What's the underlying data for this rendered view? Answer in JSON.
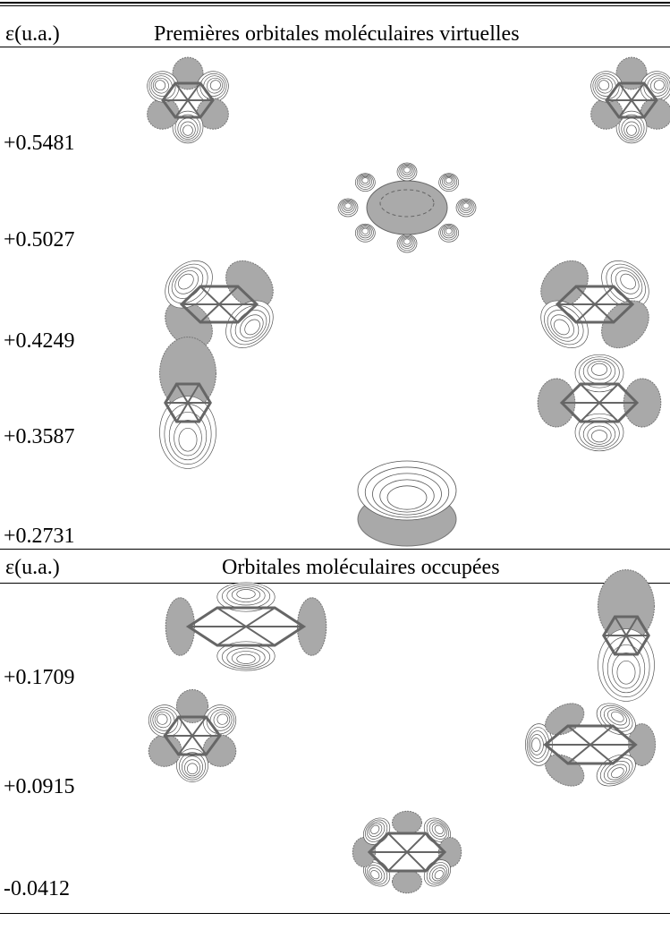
{
  "table": {
    "sections": [
      {
        "header": [
          "ε(u.a.)",
          "Premières orbitales moléculaires virtuelles"
        ],
        "rows": [
          "+0.5481",
          "+0.5027",
          "+0.4249",
          "+0.3587",
          "+0.2731"
        ]
      },
      {
        "header": [
          "ε(u.a.)",
          "Orbitales moléculaires occupées"
        ],
        "rows": [
          "+0.1709",
          "+0.0915",
          "-0.0412"
        ]
      }
    ]
  }
}
